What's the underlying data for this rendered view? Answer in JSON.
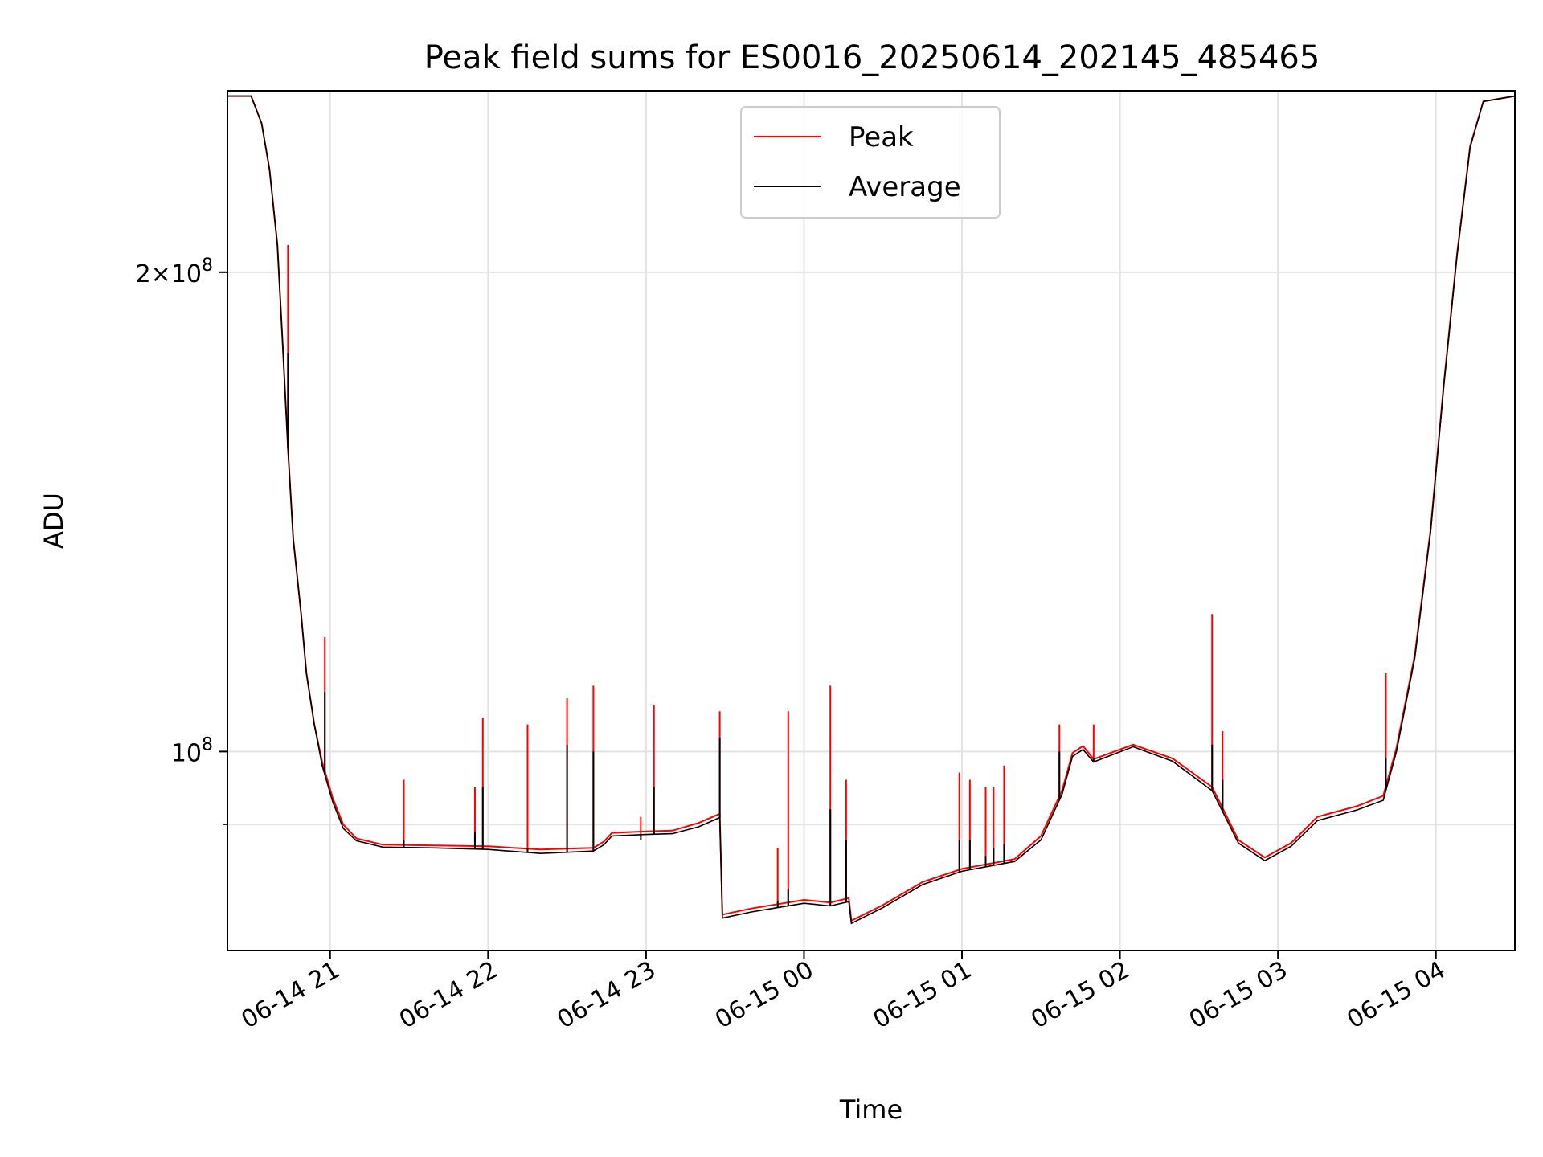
{
  "chart_data": {
    "type": "line",
    "title": "Peak field sums for ES0016_20250614_202145_485465",
    "xlabel": "Time",
    "ylabel": "ADU",
    "y_scale": "log",
    "xlim": [
      "2025-06-14T20:21",
      "2025-06-15T04:30"
    ],
    "ylim": [
      75000000,
      260000000
    ],
    "x_ticks": [
      {
        "t": "2025-06-14T21:00",
        "label": "06-14 21"
      },
      {
        "t": "2025-06-14T22:00",
        "label": "06-14 22"
      },
      {
        "t": "2025-06-14T23:00",
        "label": "06-14 23"
      },
      {
        "t": "2025-06-15T00:00",
        "label": "06-15 00"
      },
      {
        "t": "2025-06-15T01:00",
        "label": "06-15 01"
      },
      {
        "t": "2025-06-15T02:00",
        "label": "06-15 02"
      },
      {
        "t": "2025-06-15T03:00",
        "label": "06-15 03"
      },
      {
        "t": "2025-06-15T04:00",
        "label": "06-15 04"
      }
    ],
    "y_ticks_major": [
      {
        "value": 100000000,
        "base": "10",
        "exp": "8"
      },
      {
        "value": 200000000,
        "mant": "2",
        "base": "10",
        "exp": "8"
      }
    ],
    "y_ticks_minor": [
      90000000
    ],
    "grid": true,
    "legend_position": "upper center",
    "series": [
      {
        "name": "Peak",
        "color": "#ff0000",
        "points": [
          [
            "2025-06-14T20:21",
            258000000
          ],
          [
            "2025-06-14T20:30",
            258000000
          ],
          [
            "2025-06-14T20:34",
            248000000
          ],
          [
            "2025-06-14T20:37",
            232000000
          ],
          [
            "2025-06-14T20:40",
            208000000
          ],
          [
            "2025-06-14T20:42",
            180000000
          ],
          [
            "2025-06-14T20:44",
            155000000
          ],
          [
            "2025-06-14T20:46",
            136000000
          ],
          [
            "2025-06-14T20:49",
            122000000
          ],
          [
            "2025-06-14T20:51",
            112000000
          ],
          [
            "2025-06-14T20:54",
            104000000
          ],
          [
            "2025-06-14T20:57",
            98500000
          ],
          [
            "2025-06-14T21:01",
            93500000
          ],
          [
            "2025-06-14T21:05",
            90000000
          ],
          [
            "2025-06-14T21:10",
            88200000
          ],
          [
            "2025-06-14T21:20",
            87400000
          ],
          [
            "2025-06-14T21:40",
            87300000
          ],
          [
            "2025-06-14T22:00",
            87200000
          ],
          [
            "2025-06-14T22:20",
            86800000
          ],
          [
            "2025-06-14T22:40",
            87000000
          ],
          [
            "2025-06-14T22:44",
            87800000
          ],
          [
            "2025-06-14T22:47",
            88900000
          ],
          [
            "2025-06-14T23:00",
            89100000
          ],
          [
            "2025-06-14T23:10",
            89200000
          ],
          [
            "2025-06-14T23:20",
            90200000
          ],
          [
            "2025-06-14T23:28",
            91400000
          ],
          [
            "2025-06-14T23:29",
            79000000
          ],
          [
            "2025-06-14T23:40",
            79700000
          ],
          [
            "2025-06-14T23:50",
            80200000
          ],
          [
            "2025-06-15T00:00",
            80700000
          ],
          [
            "2025-06-15T00:10",
            80400000
          ],
          [
            "2025-06-15T00:17",
            80900000
          ],
          [
            "2025-06-15T00:18",
            78300000
          ],
          [
            "2025-06-15T00:30",
            80100000
          ],
          [
            "2025-06-15T00:45",
            82800000
          ],
          [
            "2025-06-15T01:00",
            84400000
          ],
          [
            "2025-06-15T01:20",
            85600000
          ],
          [
            "2025-06-15T01:30",
            88500000
          ],
          [
            "2025-06-15T01:38",
            94500000
          ],
          [
            "2025-06-15T01:42",
            99800000
          ],
          [
            "2025-06-15T01:46",
            100800000
          ],
          [
            "2025-06-15T01:50",
            98900000
          ],
          [
            "2025-06-15T02:05",
            101000000
          ],
          [
            "2025-06-15T02:20",
            99000000
          ],
          [
            "2025-06-15T02:35",
            95000000
          ],
          [
            "2025-06-15T02:45",
            88000000
          ],
          [
            "2025-06-15T02:55",
            85800000
          ],
          [
            "2025-06-15T03:05",
            87600000
          ],
          [
            "2025-06-15T03:15",
            91000000
          ],
          [
            "2025-06-15T03:30",
            92400000
          ],
          [
            "2025-06-15T03:40",
            93800000
          ],
          [
            "2025-06-15T03:45",
            100500000
          ],
          [
            "2025-06-15T03:52",
            115000000
          ],
          [
            "2025-06-15T03:58",
            138000000
          ],
          [
            "2025-06-15T04:03",
            170000000
          ],
          [
            "2025-06-15T04:08",
            205000000
          ],
          [
            "2025-06-15T04:13",
            240000000
          ],
          [
            "2025-06-15T04:18",
            256000000
          ],
          [
            "2025-06-15T04:30",
            258000000
          ]
        ]
      },
      {
        "name": "Average",
        "color": "#000000",
        "points": [
          [
            "2025-06-14T20:21",
            258000000
          ],
          [
            "2025-06-14T20:30",
            258000000
          ],
          [
            "2025-06-14T20:34",
            248000000
          ],
          [
            "2025-06-14T20:37",
            232000000
          ],
          [
            "2025-06-14T20:40",
            208000000
          ],
          [
            "2025-06-14T20:42",
            180000000
          ],
          [
            "2025-06-14T20:44",
            155000000
          ],
          [
            "2025-06-14T20:46",
            136000000
          ],
          [
            "2025-06-14T20:49",
            122000000
          ],
          [
            "2025-06-14T20:51",
            112000000
          ],
          [
            "2025-06-14T20:54",
            104000000
          ],
          [
            "2025-06-14T20:57",
            98000000
          ],
          [
            "2025-06-14T21:01",
            93000000
          ],
          [
            "2025-06-14T21:05",
            89500000
          ],
          [
            "2025-06-14T21:10",
            87900000
          ],
          [
            "2025-06-14T21:20",
            87100000
          ],
          [
            "2025-06-14T21:40",
            87000000
          ],
          [
            "2025-06-14T22:00",
            86800000
          ],
          [
            "2025-06-14T22:20",
            86300000
          ],
          [
            "2025-06-14T22:40",
            86600000
          ],
          [
            "2025-06-14T22:44",
            87400000
          ],
          [
            "2025-06-14T22:47",
            88500000
          ],
          [
            "2025-06-14T23:00",
            88700000
          ],
          [
            "2025-06-14T23:10",
            88800000
          ],
          [
            "2025-06-14T23:20",
            89700000
          ],
          [
            "2025-06-14T23:28",
            90900000
          ],
          [
            "2025-06-14T23:29",
            78600000
          ],
          [
            "2025-06-14T23:40",
            79300000
          ],
          [
            "2025-06-14T23:50",
            79800000
          ],
          [
            "2025-06-15T00:00",
            80300000
          ],
          [
            "2025-06-15T00:10",
            80000000
          ],
          [
            "2025-06-15T00:17",
            80500000
          ],
          [
            "2025-06-15T00:18",
            78000000
          ],
          [
            "2025-06-15T00:30",
            79800000
          ],
          [
            "2025-06-15T00:45",
            82500000
          ],
          [
            "2025-06-15T01:00",
            84100000
          ],
          [
            "2025-06-15T01:20",
            85300000
          ],
          [
            "2025-06-15T01:30",
            88000000
          ],
          [
            "2025-06-15T01:38",
            94000000
          ],
          [
            "2025-06-15T01:42",
            99300000
          ],
          [
            "2025-06-15T01:46",
            100300000
          ],
          [
            "2025-06-15T01:50",
            98500000
          ],
          [
            "2025-06-15T02:05",
            100700000
          ],
          [
            "2025-06-15T02:20",
            98600000
          ],
          [
            "2025-06-15T02:35",
            94500000
          ],
          [
            "2025-06-15T02:45",
            87600000
          ],
          [
            "2025-06-15T02:55",
            85400000
          ],
          [
            "2025-06-15T03:05",
            87200000
          ],
          [
            "2025-06-15T03:15",
            90500000
          ],
          [
            "2025-06-15T03:30",
            91900000
          ],
          [
            "2025-06-15T03:40",
            93200000
          ],
          [
            "2025-06-15T03:45",
            100000000
          ],
          [
            "2025-06-15T03:52",
            114500000
          ],
          [
            "2025-06-15T03:58",
            137500000
          ],
          [
            "2025-06-15T04:03",
            169500000
          ],
          [
            "2025-06-15T04:08",
            204500000
          ],
          [
            "2025-06-15T04:13",
            239500000
          ],
          [
            "2025-06-15T04:18",
            256000000
          ],
          [
            "2025-06-15T04:30",
            258000000
          ]
        ]
      }
    ],
    "peak_spikes": [
      [
        "2025-06-14T20:44",
        208000000,
        178000000
      ],
      [
        "2025-06-14T20:58",
        118000000,
        109000000
      ],
      [
        "2025-06-14T21:28",
        96000000,
        88000000
      ],
      [
        "2025-06-14T21:55",
        95000000,
        89000000
      ],
      [
        "2025-06-14T21:58",
        105000000,
        95000000
      ],
      [
        "2025-06-14T22:15",
        104000000,
        87000000
      ],
      [
        "2025-06-14T22:30",
        108000000,
        101000000
      ],
      [
        "2025-06-14T22:40",
        110000000,
        100000000
      ],
      [
        "2025-06-14T22:58",
        91000000,
        88000000
      ],
      [
        "2025-06-14T23:03",
        107000000,
        95000000
      ],
      [
        "2025-06-14T23:28",
        106000000,
        102000000
      ],
      [
        "2025-06-14T23:50",
        87000000,
        80500000
      ],
      [
        "2025-06-14T23:54",
        106000000,
        82000000
      ],
      [
        "2025-06-15T00:10",
        110000000,
        92000000
      ],
      [
        "2025-06-15T00:16",
        96000000,
        88000000
      ],
      [
        "2025-06-15T00:59",
        97000000,
        88000000
      ],
      [
        "2025-06-15T01:03",
        96000000,
        88000000
      ],
      [
        "2025-06-15T01:09",
        95000000,
        86000000
      ],
      [
        "2025-06-15T01:12",
        95000000,
        87000000
      ],
      [
        "2025-06-15T01:16",
        98000000,
        87500000
      ],
      [
        "2025-06-15T01:37",
        104000000,
        100000000
      ],
      [
        "2025-06-15T01:50",
        104000000,
        99000000
      ],
      [
        "2025-06-15T02:35",
        122000000,
        101000000
      ],
      [
        "2025-06-15T02:39",
        103000000,
        96000000
      ],
      [
        "2025-06-15T03:41",
        112000000,
        99000000
      ]
    ]
  }
}
